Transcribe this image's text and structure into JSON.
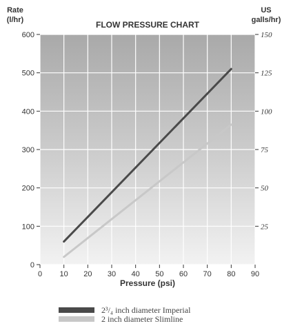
{
  "chart_data": {
    "type": "line",
    "title": "FLOW PRESSURE CHART",
    "xlabel": "Pressure (psi)",
    "ylabel_left": [
      "Rate",
      "(l/hr)"
    ],
    "ylabel_right": [
      "US",
      "galls/hr)"
    ],
    "xlim": [
      0,
      90
    ],
    "ylim_left": [
      0,
      600
    ],
    "ylim_right": [
      0,
      150
    ],
    "x_ticks": [
      "0",
      "10",
      "20",
      "30",
      "40",
      "50",
      "60",
      "70",
      "80",
      "90"
    ],
    "y_ticks_left": [
      "0",
      "100",
      "200",
      "300",
      "400",
      "500",
      "600"
    ],
    "y_ticks_right": [
      "25",
      "50",
      "75",
      "100",
      "125",
      "150"
    ],
    "grid": true,
    "legend_position": "bottom",
    "series": [
      {
        "name": "2³/₄ inch diameter Imperial",
        "color": "#4a4a4a",
        "x": [
          10,
          80
        ],
        "y": [
          60,
          510
        ]
      },
      {
        "name": "2 inch diameter Slimline",
        "color": "#c8c8c8",
        "x": [
          10,
          80
        ],
        "y": [
          20,
          365
        ]
      }
    ]
  }
}
